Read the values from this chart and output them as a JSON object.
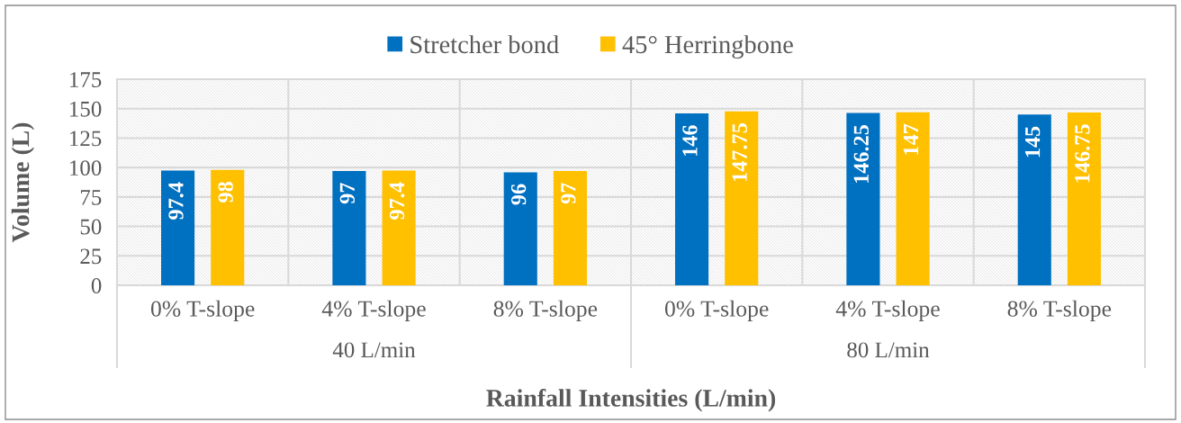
{
  "chart_data": {
    "type": "bar",
    "xlabel": "Rainfall Intensities (L/min)",
    "ylabel": "Volume (L)",
    "categories": [
      "0% T-slope",
      "4% T-slope",
      "8% T-slope",
      "0% T-slope",
      "4% T-slope",
      "8% T-slope"
    ],
    "series": [
      {
        "name": "Stretcher bond",
        "color": "#0070c0",
        "values": [
          97.4,
          97,
          96,
          146,
          146.25,
          145
        ]
      },
      {
        "name": "45° Herringbone",
        "color": "#ffc000",
        "values": [
          98,
          97.4,
          97,
          147.75,
          147,
          146.75
        ]
      }
    ],
    "ylim": [
      0,
      175
    ],
    "yticks": [
      0,
      25,
      50,
      75,
      100,
      125,
      150,
      175
    ],
    "grid": true,
    "legend": "top",
    "data_labels": true,
    "annotations": [
      "40 L/min",
      "80 L/min"
    ]
  }
}
